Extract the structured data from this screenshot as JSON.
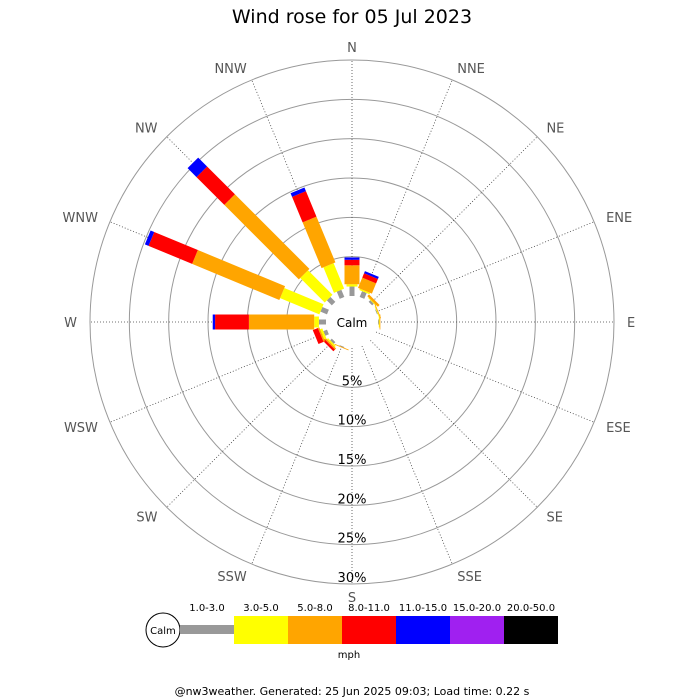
{
  "title": "Wind rose for 05 Jul 2023",
  "footer": "@nw3weather. Generated: 25 Jun 2025 09:03; Load time: 0.22 s",
  "calm_label": "Calm",
  "units": "mph",
  "chart_data": {
    "type": "wind-rose",
    "directions": [
      "N",
      "NNE",
      "NE",
      "ENE",
      "E",
      "ESE",
      "SE",
      "SSE",
      "S",
      "SSW",
      "SW",
      "WSW",
      "W",
      "WNW",
      "NW",
      "NNW"
    ],
    "radial_labels": [
      "5%",
      "10%",
      "15%",
      "20%",
      "25%",
      "30%"
    ],
    "radial_max": 30,
    "radial_ticks": [
      5,
      10,
      15,
      20,
      25,
      30
    ],
    "calm_label": "Calm",
    "speed_bins": [
      {
        "label": "1.0-3.0",
        "color": "#999999"
      },
      {
        "label": "3.0-5.0",
        "color": "#ffff00"
      },
      {
        "label": "5.0-8.0",
        "color": "#ffa500"
      },
      {
        "label": "8.0-11.0",
        "color": "#ff0000"
      },
      {
        "label": "11.0-15.0",
        "color": "#0000ff"
      },
      {
        "label": "15.0-20.0",
        "color": "#a020f0"
      },
      {
        "label": "20.0-50.0",
        "color": "#000000"
      }
    ],
    "frequencies": [
      {
        "direction": "N",
        "values": [
          1.2,
          0.3,
          2.4,
          0.7,
          0.3,
          0,
          0
        ]
      },
      {
        "direction": "NNE",
        "values": [
          0.8,
          0.2,
          1.4,
          0.6,
          0.3,
          0,
          0
        ]
      },
      {
        "direction": "NE",
        "values": [
          0.3,
          0.1,
          0.3,
          0,
          0,
          0,
          0
        ]
      },
      {
        "direction": "ENE",
        "values": [
          0.1,
          0.1,
          0.1,
          0,
          0,
          0,
          0
        ]
      },
      {
        "direction": "E",
        "values": [
          0.1,
          0.1,
          0.1,
          0,
          0,
          0,
          0
        ]
      },
      {
        "direction": "ESE",
        "values": [
          0,
          0,
          0,
          0,
          0,
          0,
          0
        ]
      },
      {
        "direction": "SE",
        "values": [
          0,
          0,
          0,
          0,
          0,
          0,
          0
        ]
      },
      {
        "direction": "SSE",
        "values": [
          0,
          0,
          0,
          0,
          0,
          0,
          0
        ]
      },
      {
        "direction": "S",
        "values": [
          0,
          0,
          0,
          0,
          0,
          0,
          0
        ]
      },
      {
        "direction": "SSW",
        "values": [
          0.1,
          0,
          0.1,
          0,
          0,
          0,
          0
        ]
      },
      {
        "direction": "SW",
        "values": [
          0.3,
          0.2,
          0.2,
          0.3,
          0,
          0,
          0
        ]
      },
      {
        "direction": "WSW",
        "values": [
          0.5,
          0.3,
          0.2,
          0.7,
          0,
          0,
          0
        ]
      },
      {
        "direction": "W",
        "values": [
          0.9,
          0.6,
          8.3,
          4.3,
          0.3,
          0,
          0
        ]
      },
      {
        "direction": "WNW",
        "values": [
          0.9,
          5.4,
          12.0,
          6.0,
          0.5,
          0,
          0
        ]
      },
      {
        "direction": "NW",
        "values": [
          0.9,
          4.4,
          13.4,
          5.0,
          1.6,
          0,
          0
        ]
      },
      {
        "direction": "NNW",
        "values": [
          1.0,
          3.5,
          6.3,
          3.5,
          0.5,
          0,
          0
        ]
      }
    ]
  }
}
